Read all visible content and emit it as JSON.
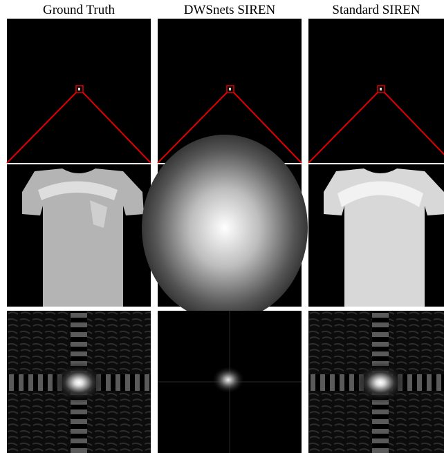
{
  "columns": [
    {
      "title": "Ground Truth"
    },
    {
      "title": "DWSnets SIREN"
    },
    {
      "title": "Standard SIREN"
    }
  ]
}
